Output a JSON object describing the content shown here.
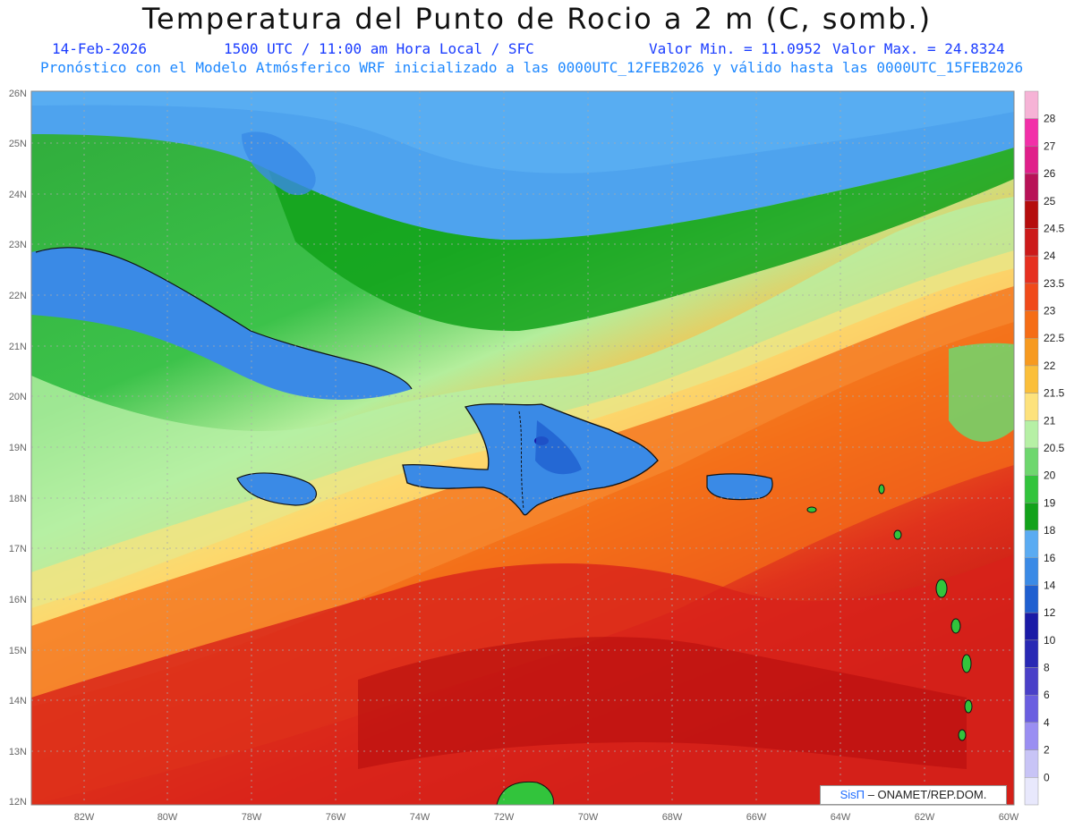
{
  "header": {
    "title": "Temperatura del Punto de Rocio a 2 m (C, somb.)",
    "date": "14-Feb-2026",
    "time": "1500 UTC / 11:00 am Hora Local / SFC",
    "value_min": "Valor Min. = 11.0952",
    "value_max": "Valor Max. = 24.8324",
    "model_info": "Pronóstico con el Modelo Atmósferico WRF inicializado a las 0000UTC_12FEB2026 y válido hasta las  0000UTC_15FEB2026"
  },
  "axes": {
    "lat_labels": [
      "26N",
      "25N",
      "24N",
      "23N",
      "22N",
      "21N",
      "20N",
      "19N",
      "18N",
      "17N",
      "16N",
      "15N",
      "14N",
      "13N",
      "12N"
    ],
    "lon_labels": [
      "82W",
      "80W",
      "78W",
      "76W",
      "74W",
      "72W",
      "70W",
      "68W",
      "66W",
      "64W",
      "62W",
      "60W"
    ]
  },
  "colorbar": {
    "labels": [
      "28",
      "27",
      "26",
      "25",
      "24.5",
      "24",
      "23.5",
      "23",
      "22.5",
      "22",
      "21.5",
      "21",
      "20.5",
      "20",
      "19",
      "18",
      "16",
      "14",
      "12",
      "10",
      "8",
      "6",
      "4",
      "2",
      "0"
    ],
    "colors": [
      "#f6b3d6",
      "#f22fa8",
      "#e01f8a",
      "#b81257",
      "#b50d0d",
      "#cc1a1a",
      "#e63020",
      "#f04a1a",
      "#f56d16",
      "#f79a1f",
      "#fbbf3a",
      "#fde27c",
      "#b6f0a5",
      "#6ed76e",
      "#32c43c",
      "#12a21a",
      "#5aabf2",
      "#3a8ae6",
      "#1f5fd0",
      "#1a1aa6",
      "#2828b4",
      "#4a40c8",
      "#6a5ee0",
      "#9a8ef2",
      "#c8c4f6",
      "#e8e8fc"
    ]
  },
  "credit": {
    "brand": "SisΠ",
    "org": "– ONAMET/REP.DOM."
  }
}
